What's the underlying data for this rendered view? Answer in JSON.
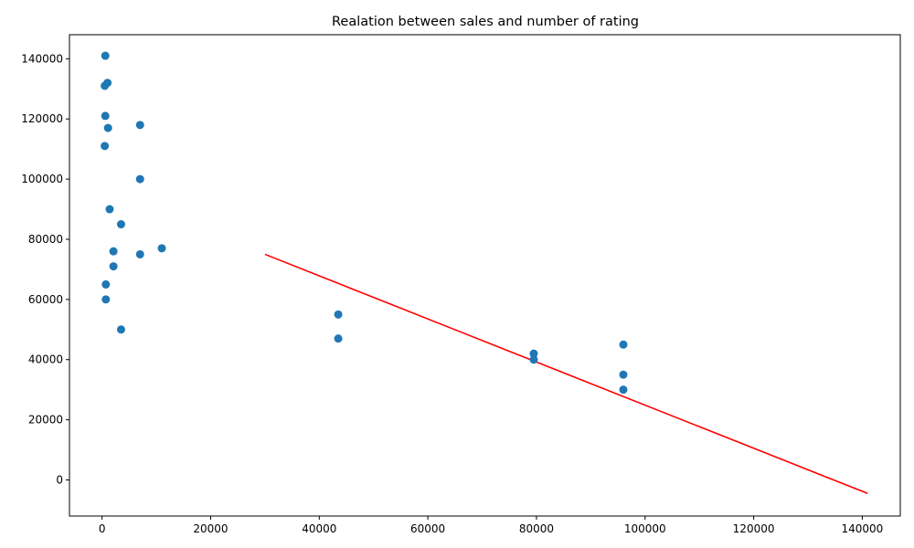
{
  "chart_data": {
    "type": "scatter",
    "title": "Realation between sales and number of rating",
    "xlabel": "",
    "ylabel": "",
    "xlim": [
      -6000,
      147000
    ],
    "ylim": [
      -12000,
      148000
    ],
    "xticks": [
      0,
      20000,
      40000,
      60000,
      80000,
      100000,
      120000,
      140000
    ],
    "yticks": [
      0,
      20000,
      40000,
      60000,
      80000,
      100000,
      120000,
      140000
    ],
    "grid": false,
    "colors": {
      "points": "#1f77b4",
      "trendline": "#ff0000",
      "axes": "#000000"
    },
    "points": [
      {
        "x": 600,
        "y": 141000
      },
      {
        "x": 1000,
        "y": 132000
      },
      {
        "x": 500,
        "y": 131000
      },
      {
        "x": 600,
        "y": 121000
      },
      {
        "x": 1100,
        "y": 117000
      },
      {
        "x": 7000,
        "y": 118000
      },
      {
        "x": 500,
        "y": 111000
      },
      {
        "x": 7000,
        "y": 100000
      },
      {
        "x": 1400,
        "y": 90000
      },
      {
        "x": 3500,
        "y": 85000
      },
      {
        "x": 11000,
        "y": 77000
      },
      {
        "x": 2100,
        "y": 76000
      },
      {
        "x": 7000,
        "y": 75000
      },
      {
        "x": 2100,
        "y": 71000
      },
      {
        "x": 700,
        "y": 65000
      },
      {
        "x": 700,
        "y": 60000
      },
      {
        "x": 43500,
        "y": 55000
      },
      {
        "x": 3500,
        "y": 50000
      },
      {
        "x": 43500,
        "y": 47000
      },
      {
        "x": 96000,
        "y": 45000
      },
      {
        "x": 79500,
        "y": 42000
      },
      {
        "x": 79500,
        "y": 40000
      },
      {
        "x": 96000,
        "y": 35000
      },
      {
        "x": 96000,
        "y": 30000
      }
    ],
    "trendline": {
      "x": [
        30000,
        141000
      ],
      "y": [
        75000,
        -4500
      ]
    }
  }
}
